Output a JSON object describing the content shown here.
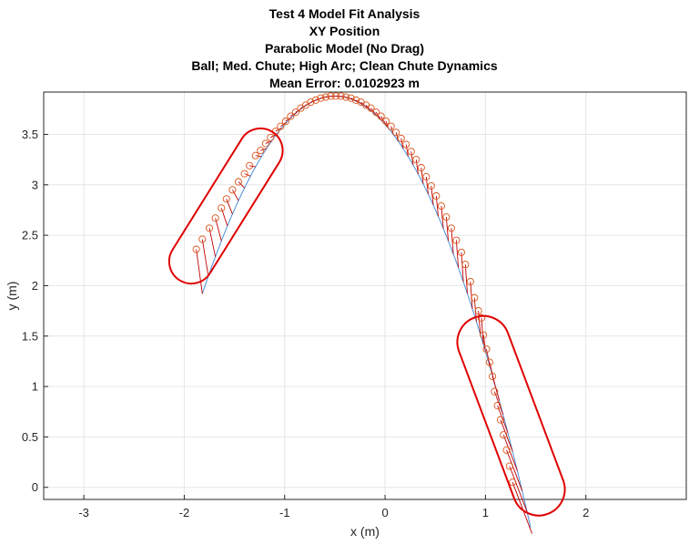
{
  "chart_data": {
    "type": "scatter",
    "title_lines": [
      "Test 4 Model Fit Analysis",
      "XY Position",
      "Parabolic Model (No Drag)",
      "Ball; Med. Chute; High Arc; Clean Chute Dynamics",
      "Mean Error: 0.0102923 m"
    ],
    "xlabel": "x (m)",
    "ylabel": "y (m)",
    "xlim": [
      -3.4,
      3.0
    ],
    "ylim": [
      -0.12,
      3.92
    ],
    "xticks": [
      -3,
      -2,
      -1,
      0,
      1,
      2
    ],
    "yticks": [
      0,
      0.5,
      1,
      1.5,
      2,
      2.5,
      3,
      3.5
    ],
    "grid": true,
    "colors": {
      "model_line": "#4a90d9",
      "measured_markers": "#d95319",
      "error_vectors": "#c00000",
      "highlight_outline": "#e00000"
    },
    "model_curve": {
      "form": "y = 3.88 - 1.125*(x + 0.5)^2",
      "x_range": [
        -1.82,
        1.45
      ]
    },
    "measured_points": [
      {
        "x": -1.88,
        "y": 2.36
      },
      {
        "x": -1.82,
        "y": 2.46
      },
      {
        "x": -1.75,
        "y": 2.57
      },
      {
        "x": -1.69,
        "y": 2.67
      },
      {
        "x": -1.63,
        "y": 2.77
      },
      {
        "x": -1.58,
        "y": 2.86
      },
      {
        "x": -1.52,
        "y": 2.95
      },
      {
        "x": -1.46,
        "y": 3.03
      },
      {
        "x": -1.4,
        "y": 3.11
      },
      {
        "x": -1.35,
        "y": 3.19
      },
      {
        "x": -1.29,
        "y": 3.29
      },
      {
        "x": -1.24,
        "y": 3.34
      },
      {
        "x": -1.19,
        "y": 3.41
      },
      {
        "x": -1.14,
        "y": 3.47
      },
      {
        "x": -1.09,
        "y": 3.53
      },
      {
        "x": -1.04,
        "y": 3.58
      },
      {
        "x": -0.99,
        "y": 3.63
      },
      {
        "x": -0.94,
        "y": 3.68
      },
      {
        "x": -0.89,
        "y": 3.72
      },
      {
        "x": -0.84,
        "y": 3.76
      },
      {
        "x": -0.79,
        "y": 3.79
      },
      {
        "x": -0.74,
        "y": 3.82
      },
      {
        "x": -0.69,
        "y": 3.84
      },
      {
        "x": -0.64,
        "y": 3.86
      },
      {
        "x": -0.59,
        "y": 3.87
      },
      {
        "x": -0.54,
        "y": 3.88
      },
      {
        "x": -0.49,
        "y": 3.88
      },
      {
        "x": -0.44,
        "y": 3.88
      },
      {
        "x": -0.39,
        "y": 3.87
      },
      {
        "x": -0.34,
        "y": 3.86
      },
      {
        "x": -0.29,
        "y": 3.84
      },
      {
        "x": -0.24,
        "y": 3.82
      },
      {
        "x": -0.19,
        "y": 3.79
      },
      {
        "x": -0.14,
        "y": 3.76
      },
      {
        "x": -0.09,
        "y": 3.72
      },
      {
        "x": -0.04,
        "y": 3.68
      },
      {
        "x": 0.01,
        "y": 3.63
      },
      {
        "x": 0.06,
        "y": 3.58
      },
      {
        "x": 0.11,
        "y": 3.52
      },
      {
        "x": 0.16,
        "y": 3.46
      },
      {
        "x": 0.21,
        "y": 3.4
      },
      {
        "x": 0.26,
        "y": 3.33
      },
      {
        "x": 0.31,
        "y": 3.25
      },
      {
        "x": 0.36,
        "y": 3.17
      },
      {
        "x": 0.41,
        "y": 3.08
      },
      {
        "x": 0.46,
        "y": 2.99
      },
      {
        "x": 0.51,
        "y": 2.89
      },
      {
        "x": 0.56,
        "y": 2.79
      },
      {
        "x": 0.61,
        "y": 2.68
      },
      {
        "x": 0.66,
        "y": 2.57
      },
      {
        "x": 0.71,
        "y": 2.45
      },
      {
        "x": 0.76,
        "y": 2.33
      },
      {
        "x": 0.8,
        "y": 2.21
      },
      {
        "x": 0.85,
        "y": 2.04
      },
      {
        "x": 0.89,
        "y": 1.88
      },
      {
        "x": 0.93,
        "y": 1.75
      },
      {
        "x": 0.96,
        "y": 1.68
      },
      {
        "x": 0.98,
        "y": 1.51
      },
      {
        "x": 1.01,
        "y": 1.37
      },
      {
        "x": 1.04,
        "y": 1.24
      },
      {
        "x": 1.07,
        "y": 1.1
      },
      {
        "x": 1.09,
        "y": 0.95
      },
      {
        "x": 1.12,
        "y": 0.81
      },
      {
        "x": 1.15,
        "y": 0.67
      },
      {
        "x": 1.18,
        "y": 0.52
      },
      {
        "x": 1.21,
        "y": 0.37
      },
      {
        "x": 1.24,
        "y": 0.21
      },
      {
        "x": 1.27,
        "y": 0.05
      }
    ],
    "highlight_regions": [
      {
        "shape": "capsule",
        "from": {
          "x": -1.93,
          "y": 2.24
        },
        "to": {
          "x": -1.24,
          "y": 3.34
        },
        "radius_x_units": 0.22
      },
      {
        "shape": "capsule",
        "from": {
          "x": 0.98,
          "y": 1.44
        },
        "to": {
          "x": 1.53,
          "y": -0.02
        },
        "radius_x_units": 0.26
      }
    ]
  }
}
